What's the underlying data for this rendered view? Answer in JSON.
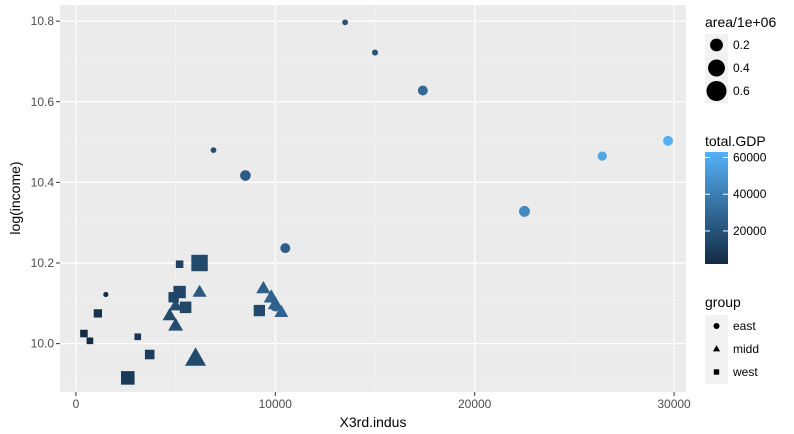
{
  "chart_data": {
    "type": "scatter",
    "title": "",
    "xlabel": "X3rd.indus",
    "ylabel": "log(income)",
    "xlim": [
      -800,
      30600
    ],
    "ylim": [
      9.88,
      10.84
    ],
    "xticks": [
      0,
      10000,
      20000,
      30000
    ],
    "xtick_labels": [
      "0",
      "10000",
      "20000",
      "30000"
    ],
    "yticks": [
      10.0,
      10.2,
      10.4,
      10.6,
      10.8
    ],
    "ytick_labels": [
      "10.0",
      "10.2",
      "10.4",
      "10.6",
      "10.8"
    ],
    "grid": true,
    "color_scale": {
      "title": "total.GDP",
      "breaks": [
        20000,
        40000,
        60000
      ],
      "break_labels": [
        "20000",
        "40000",
        "60000"
      ],
      "range": [
        2000,
        63000
      ],
      "low_color": "#132B43",
      "high_color": "#56B1F7"
    },
    "size_legend": {
      "title": "area/1e+06",
      "values": [
        0.2,
        0.4,
        0.6
      ],
      "labels": [
        "0.2",
        "0.4",
        "0.6"
      ]
    },
    "shape_legend": {
      "title": "group",
      "items": [
        {
          "label": "east",
          "shape": "circle"
        },
        {
          "label": "midd",
          "shape": "triangle"
        },
        {
          "label": "west",
          "shape": "square"
        }
      ]
    },
    "points": [
      {
        "x": 13500,
        "y": 10.797,
        "group": "east",
        "area": 0.016,
        "gdp": 20000
      },
      {
        "x": 15000,
        "y": 10.722,
        "group": "east",
        "area": 0.02,
        "gdp": 22000
      },
      {
        "x": 17400,
        "y": 10.628,
        "group": "east",
        "area": 0.1,
        "gdp": 30000
      },
      {
        "x": 29700,
        "y": 10.503,
        "group": "east",
        "area": 0.1,
        "gdp": 62000
      },
      {
        "x": 26400,
        "y": 10.465,
        "group": "east",
        "area": 0.08,
        "gdp": 58000
      },
      {
        "x": 6900,
        "y": 10.48,
        "group": "east",
        "area": 0.016,
        "gdp": 18000
      },
      {
        "x": 8500,
        "y": 10.417,
        "group": "east",
        "area": 0.12,
        "gdp": 24000
      },
      {
        "x": 22500,
        "y": 10.328,
        "group": "east",
        "area": 0.13,
        "gdp": 45000
      },
      {
        "x": 10500,
        "y": 10.237,
        "group": "east",
        "area": 0.1,
        "gdp": 25000
      },
      {
        "x": 1500,
        "y": 10.122,
        "group": "east",
        "area": 0.01,
        "gdp": 3000
      },
      {
        "x": 10000,
        "y": 10.092,
        "group": "east",
        "area": 0.1,
        "gdp": 27000
      },
      {
        "x": 6200,
        "y": 10.128,
        "group": "midd",
        "area": 0.16,
        "gdp": 23000
      },
      {
        "x": 9400,
        "y": 10.137,
        "group": "midd",
        "area": 0.17,
        "gdp": 26000
      },
      {
        "x": 9800,
        "y": 10.115,
        "group": "midd",
        "area": 0.2,
        "gdp": 27000
      },
      {
        "x": 10000,
        "y": 10.098,
        "group": "midd",
        "area": 0.19,
        "gdp": 26000
      },
      {
        "x": 10300,
        "y": 10.078,
        "group": "midd",
        "area": 0.16,
        "gdp": 28000
      },
      {
        "x": 4700,
        "y": 10.07,
        "group": "midd",
        "area": 0.16,
        "gdp": 16000
      },
      {
        "x": 5000,
        "y": 10.094,
        "group": "midd",
        "area": 0.15,
        "gdp": 17000
      },
      {
        "x": 5000,
        "y": 10.045,
        "group": "midd",
        "area": 0.19,
        "gdp": 17000
      },
      {
        "x": 6000,
        "y": 9.963,
        "group": "midd",
        "area": 0.45,
        "gdp": 16000
      },
      {
        "x": 6200,
        "y": 10.2,
        "group": "west",
        "area": 0.48,
        "gdp": 16000
      },
      {
        "x": 5200,
        "y": 10.197,
        "group": "west",
        "area": 0.06,
        "gdp": 12000
      },
      {
        "x": 5200,
        "y": 10.128,
        "group": "west",
        "area": 0.24,
        "gdp": 14000
      },
      {
        "x": 4900,
        "y": 10.115,
        "group": "west",
        "area": 0.15,
        "gdp": 14000
      },
      {
        "x": 5500,
        "y": 10.09,
        "group": "west",
        "area": 0.2,
        "gdp": 15000
      },
      {
        "x": 9200,
        "y": 10.082,
        "group": "west",
        "area": 0.19,
        "gdp": 16000
      },
      {
        "x": 1100,
        "y": 10.075,
        "group": "west",
        "area": 0.08,
        "gdp": 5000
      },
      {
        "x": 400,
        "y": 10.025,
        "group": "west",
        "area": 0.06,
        "gdp": 3000
      },
      {
        "x": 700,
        "y": 10.007,
        "group": "west",
        "area": 0.04,
        "gdp": 3000
      },
      {
        "x": 3100,
        "y": 10.017,
        "group": "west",
        "area": 0.04,
        "gdp": 8000
      },
      {
        "x": 3700,
        "y": 9.973,
        "group": "west",
        "area": 0.12,
        "gdp": 10000
      },
      {
        "x": 2600,
        "y": 9.915,
        "group": "west",
        "area": 0.3,
        "gdp": 9000
      }
    ]
  }
}
